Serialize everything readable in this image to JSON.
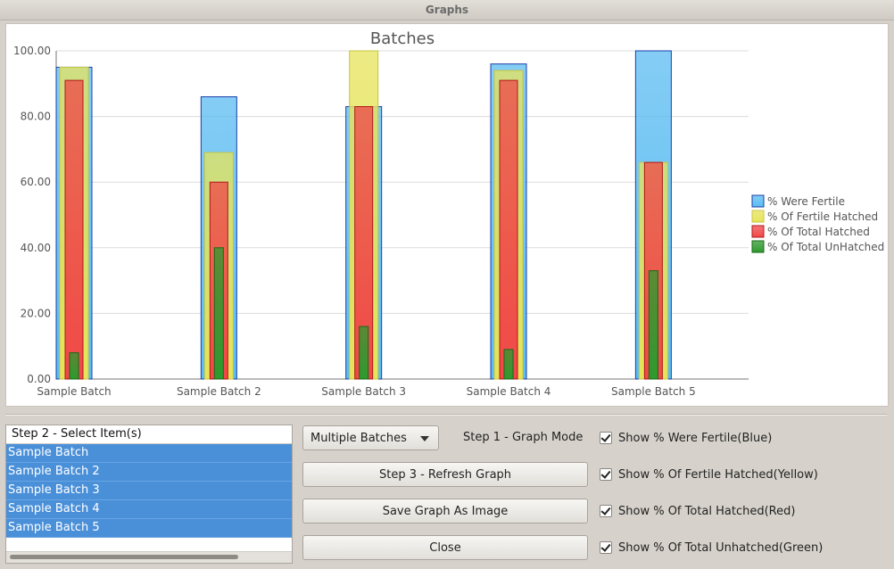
{
  "window": {
    "title": "Graphs"
  },
  "chart_data": {
    "type": "bar",
    "title": "Batches",
    "categories": [
      "Sample Batch",
      "Sample Batch 2",
      "Sample Batch 3",
      "Sample Batch 4",
      "Sample Batch 5"
    ],
    "series": [
      {
        "name": "% Were Fertile",
        "color": "#5bbcf2",
        "values": [
          95,
          86,
          83,
          96,
          100
        ]
      },
      {
        "name": "% Of Fertile Hatched",
        "color": "#e6e45a",
        "values": [
          95,
          69,
          100,
          94,
          66
        ]
      },
      {
        "name": "% Of Total Hatched",
        "color": "#f04848",
        "values": [
          91,
          60,
          83,
          91,
          66
        ]
      },
      {
        "name": "% Of Total UnHatched",
        "color": "#2e9a2e",
        "values": [
          8,
          40,
          16,
          9,
          33
        ]
      }
    ],
    "ylim": [
      0,
      100
    ],
    "yticks": [
      "0.00",
      "20.00",
      "40.00",
      "60.00",
      "80.00",
      "100.00"
    ],
    "grid": true,
    "legend": "right"
  },
  "item_list": {
    "header": "Step 2 - Select Item(s)",
    "items": [
      "Sample Batch",
      "Sample Batch 2",
      "Sample Batch 3",
      "Sample Batch 4",
      "Sample Batch 5"
    ]
  },
  "controls": {
    "mode_value": "Multiple Batches",
    "mode_label": "Step 1 - Graph Mode",
    "refresh_label": "Step 3 - Refresh Graph",
    "save_label": "Save Graph As Image",
    "close_label": "Close"
  },
  "options": [
    {
      "label": "Show % Were Fertile(Blue)",
      "checked": true
    },
    {
      "label": "Show % Of Fertile Hatched(Yellow)",
      "checked": true
    },
    {
      "label": "Show % Of Total Hatched(Red)",
      "checked": true
    },
    {
      "label": "Show % Of Total Unhatched(Green)",
      "checked": true
    }
  ]
}
